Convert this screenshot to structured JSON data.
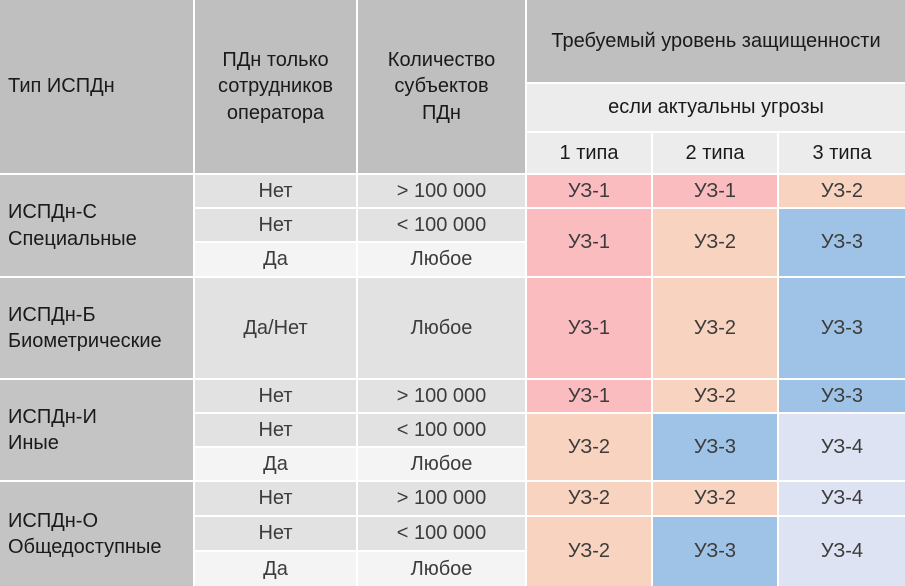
{
  "header": {
    "type_label": "Тип ИСПДн",
    "employees_label": "ПДн только\nсотрудников\nоператора",
    "count_label": "Количество\nсубъектов\nПДн",
    "required_level_label": "Требуемый уровень защищенности",
    "threats_label": "если актуальны угрозы",
    "threat_types": [
      "1 типа",
      "2 типа",
      "3 типа"
    ]
  },
  "groups": [
    {
      "name": "ИСПДн-С\nСпециальные",
      "rows": [
        {
          "employees": "Нет",
          "count": "> 100 000"
        },
        {
          "employees": "Нет",
          "count": "< 100 000"
        },
        {
          "employees": "Да",
          "count": "Любое"
        }
      ]
    },
    {
      "name": "ИСПДн-Б\nБиометрические",
      "rows": [
        {
          "employees": "Да/Нет",
          "count": "Любое"
        }
      ]
    },
    {
      "name": "ИСПДн-И\nИные",
      "rows": [
        {
          "employees": "Нет",
          "count": "> 100 000"
        },
        {
          "employees": "Нет",
          "count": "< 100 000"
        },
        {
          "employees": "Да",
          "count": "Любое"
        }
      ]
    },
    {
      "name": "ИСПДн-О\nОбщедоступные",
      "rows": [
        {
          "employees": "Нет",
          "count": "> 100 000"
        },
        {
          "employees": "Нет",
          "count": "< 100 000"
        },
        {
          "employees": "Да",
          "count": "Любое"
        }
      ]
    }
  ],
  "levels": {
    "s_top": [
      "УЗ-1",
      "УЗ-1",
      "УЗ-2"
    ],
    "s_rest": [
      "УЗ-1",
      "УЗ-2",
      "УЗ-3"
    ],
    "b": [
      "УЗ-1",
      "УЗ-2",
      "УЗ-3"
    ],
    "i_top": [
      "УЗ-1",
      "УЗ-2",
      "УЗ-3"
    ],
    "i_rest": [
      "УЗ-2",
      "УЗ-3",
      "УЗ-4"
    ],
    "o_top": [
      "УЗ-2",
      "УЗ-2",
      "УЗ-4"
    ],
    "o_rest": [
      "УЗ-2",
      "УЗ-3",
      "УЗ-4"
    ]
  },
  "colors": {
    "header_dark": "#bfbfbf",
    "header_light": "#ececec",
    "type_col": "#c4c4c4",
    "row_dark": "#e2e2e2",
    "row_light": "#f4f4f4",
    "uz1": "#fbbcc0",
    "uz2": "#f8d3c0",
    "uz3": "#9fc3e6",
    "uz4": "#dde3f2"
  }
}
